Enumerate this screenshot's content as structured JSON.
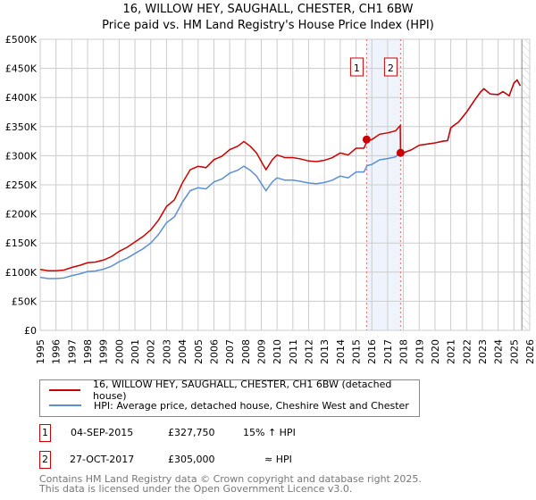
{
  "title_line1": "16, WILLOW HEY, SAUGHALL, CHESTER, CH1 6BW",
  "title_line2": "Price paid vs. HM Land Registry's House Price Index (HPI)",
  "colors": {
    "property": "#cc0000",
    "hpi": "#5b8fd4",
    "band": "#eef3fc"
  },
  "chart_data": {
    "type": "line",
    "xlim": [
      1995,
      2026
    ],
    "ylim": [
      0,
      500000
    ],
    "yticks": [
      0,
      50000,
      100000,
      150000,
      200000,
      250000,
      300000,
      350000,
      400000,
      450000,
      500000
    ],
    "ytick_labels": [
      "£0",
      "£50K",
      "£100K",
      "£150K",
      "£200K",
      "£250K",
      "£300K",
      "£350K",
      "£400K",
      "£450K",
      "£500K"
    ],
    "xticks": [
      "1995",
      "1996",
      "1997",
      "1998",
      "1999",
      "2000",
      "2001",
      "2002",
      "2003",
      "2004",
      "2005",
      "2006",
      "2007",
      "2008",
      "2009",
      "2010",
      "2011",
      "2012",
      "2013",
      "2014",
      "2015",
      "2016",
      "2017",
      "2018",
      "2019",
      "2020",
      "2021",
      "2022",
      "2023",
      "2024",
      "2025",
      "2026"
    ],
    "grid": true,
    "hpi": {
      "name": "HPI: Average price, detached house, Cheshire West and Chester",
      "x": [
        1995,
        1995.5,
        1996,
        1996.5,
        1997,
        1997.5,
        1998,
        1998.5,
        1999,
        1999.5,
        2000,
        2000.5,
        2001,
        2001.5,
        2002,
        2002.5,
        2003,
        2003.5,
        2004,
        2004.5,
        2005,
        2005.5,
        2006,
        2006.5,
        2007,
        2007.5,
        2007.9,
        2008.3,
        2008.7,
        2009.1,
        2009.3,
        2009.7,
        2010,
        2010.5,
        2011,
        2011.5,
        2012,
        2012.5,
        2013,
        2013.5,
        2014,
        2014.5,
        2015,
        2015.5,
        2015.7,
        2016,
        2016.5,
        2017,
        2017.5,
        2017.8,
        2018,
        2018.5,
        2019,
        2019.5,
        2020,
        2020.5,
        2020.8,
        2021,
        2021.5,
        2022,
        2022.5,
        2022.9,
        2023.1,
        2023.5,
        2024,
        2024.3,
        2024.7,
        2025,
        2025.2,
        2025.4
      ],
      "y": [
        91000,
        89000,
        89000,
        90000,
        94000,
        97000,
        101000,
        102000,
        105000,
        110000,
        118000,
        124000,
        132000,
        140000,
        150000,
        165000,
        185000,
        195000,
        220000,
        240000,
        245000,
        243000,
        255000,
        260000,
        270000,
        275000,
        282000,
        275000,
        265000,
        248000,
        240000,
        255000,
        262000,
        258000,
        258000,
        256000,
        253000,
        252000,
        254000,
        258000,
        265000,
        262000,
        272000,
        272000,
        283000,
        285000,
        293000,
        295000,
        298000,
        306000,
        305000,
        310000,
        318000,
        320000,
        322000,
        325000,
        326000,
        348000,
        358000,
        375000,
        395000,
        410000,
        415000,
        406000,
        405000,
        410000,
        403000,
        425000,
        430000,
        420000
      ]
    },
    "property": {
      "name": "16, WILLOW HEY, SAUGHALL, CHESTER, CH1 6BW (detached house)"
    },
    "sales": [
      {
        "label": "1",
        "x": 2015.67,
        "y": 327750
      },
      {
        "label": "2",
        "x": 2017.82,
        "y": 305000
      }
    ],
    "forecast_start": 2025.5
  },
  "legend": {
    "property": "16, WILLOW HEY, SAUGHALL, CHESTER, CH1 6BW (detached house)",
    "hpi": "HPI: Average price, detached house, Cheshire West and Chester"
  },
  "transactions": [
    {
      "num": "1",
      "date": "04-SEP-2015",
      "price": "£327,750",
      "vs": "15% ↑ HPI"
    },
    {
      "num": "2",
      "date": "27-OCT-2017",
      "price": "£305,000",
      "vs": "≈ HPI"
    }
  ],
  "footer_line1": "Contains HM Land Registry data © Crown copyright and database right 2025.",
  "footer_line2": "This data is licensed under the Open Government Licence v3.0."
}
